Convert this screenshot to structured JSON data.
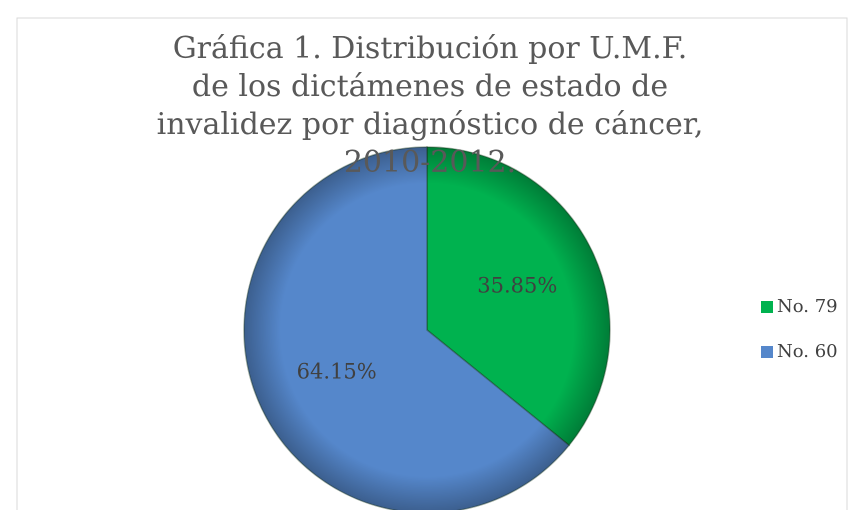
{
  "chart_data": {
    "type": "pie",
    "title": "Gráfica 1. Distribución por U.M.F. de los dictámenes de estado de invalidez por diagnóstico de cáncer, 2010-2012.",
    "categories": [
      "No. 79",
      "No. 60"
    ],
    "values": [
      35.85,
      64.15
    ],
    "value_labels": [
      "35.85%",
      "64.15%"
    ],
    "colors": [
      "#00b24f",
      "#5587cb"
    ],
    "legend": "right"
  }
}
